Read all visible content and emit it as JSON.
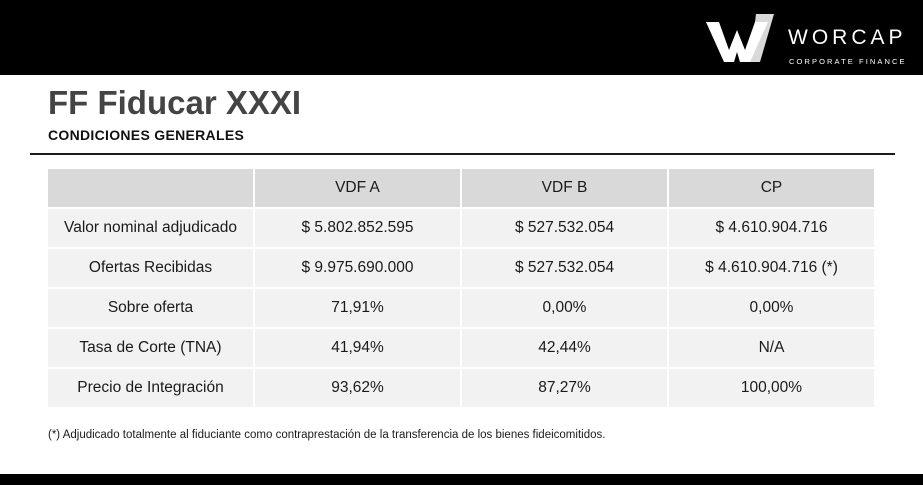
{
  "brand": {
    "name": "WORCAP",
    "tagline": "CORPORATE FINANCE"
  },
  "title": "FF Fiducar XXXI",
  "subtitle": "CONDICIONES GENERALES",
  "table": {
    "headers": [
      "",
      "VDF A",
      "VDF B",
      "CP"
    ],
    "rows": [
      [
        "Valor nominal adjudicado",
        "$ 5.802.852.595",
        "$ 527.532.054",
        "$ 4.610.904.716"
      ],
      [
        "Ofertas Recibidas",
        "$ 9.975.690.000",
        "$ 527.532.054",
        "$ 4.610.904.716 (*)"
      ],
      [
        "Sobre oferta",
        "71,91%",
        "0,00%",
        "0,00%"
      ],
      [
        "Tasa de Corte (TNA)",
        "41,94%",
        "42,44%",
        "N/A"
      ],
      [
        "Precio de Integración",
        "93,62%",
        "87,27%",
        "100,00%"
      ]
    ]
  },
  "footnote": "(*) Adjudicado totalmente al fiduciante como contraprestación de la transferencia de los bienes fideicomitidos.",
  "colors": {
    "bar": "#000000",
    "header_cell": "#d9d9d9",
    "body_cell": "#f2f2f2",
    "title": "#444444"
  }
}
